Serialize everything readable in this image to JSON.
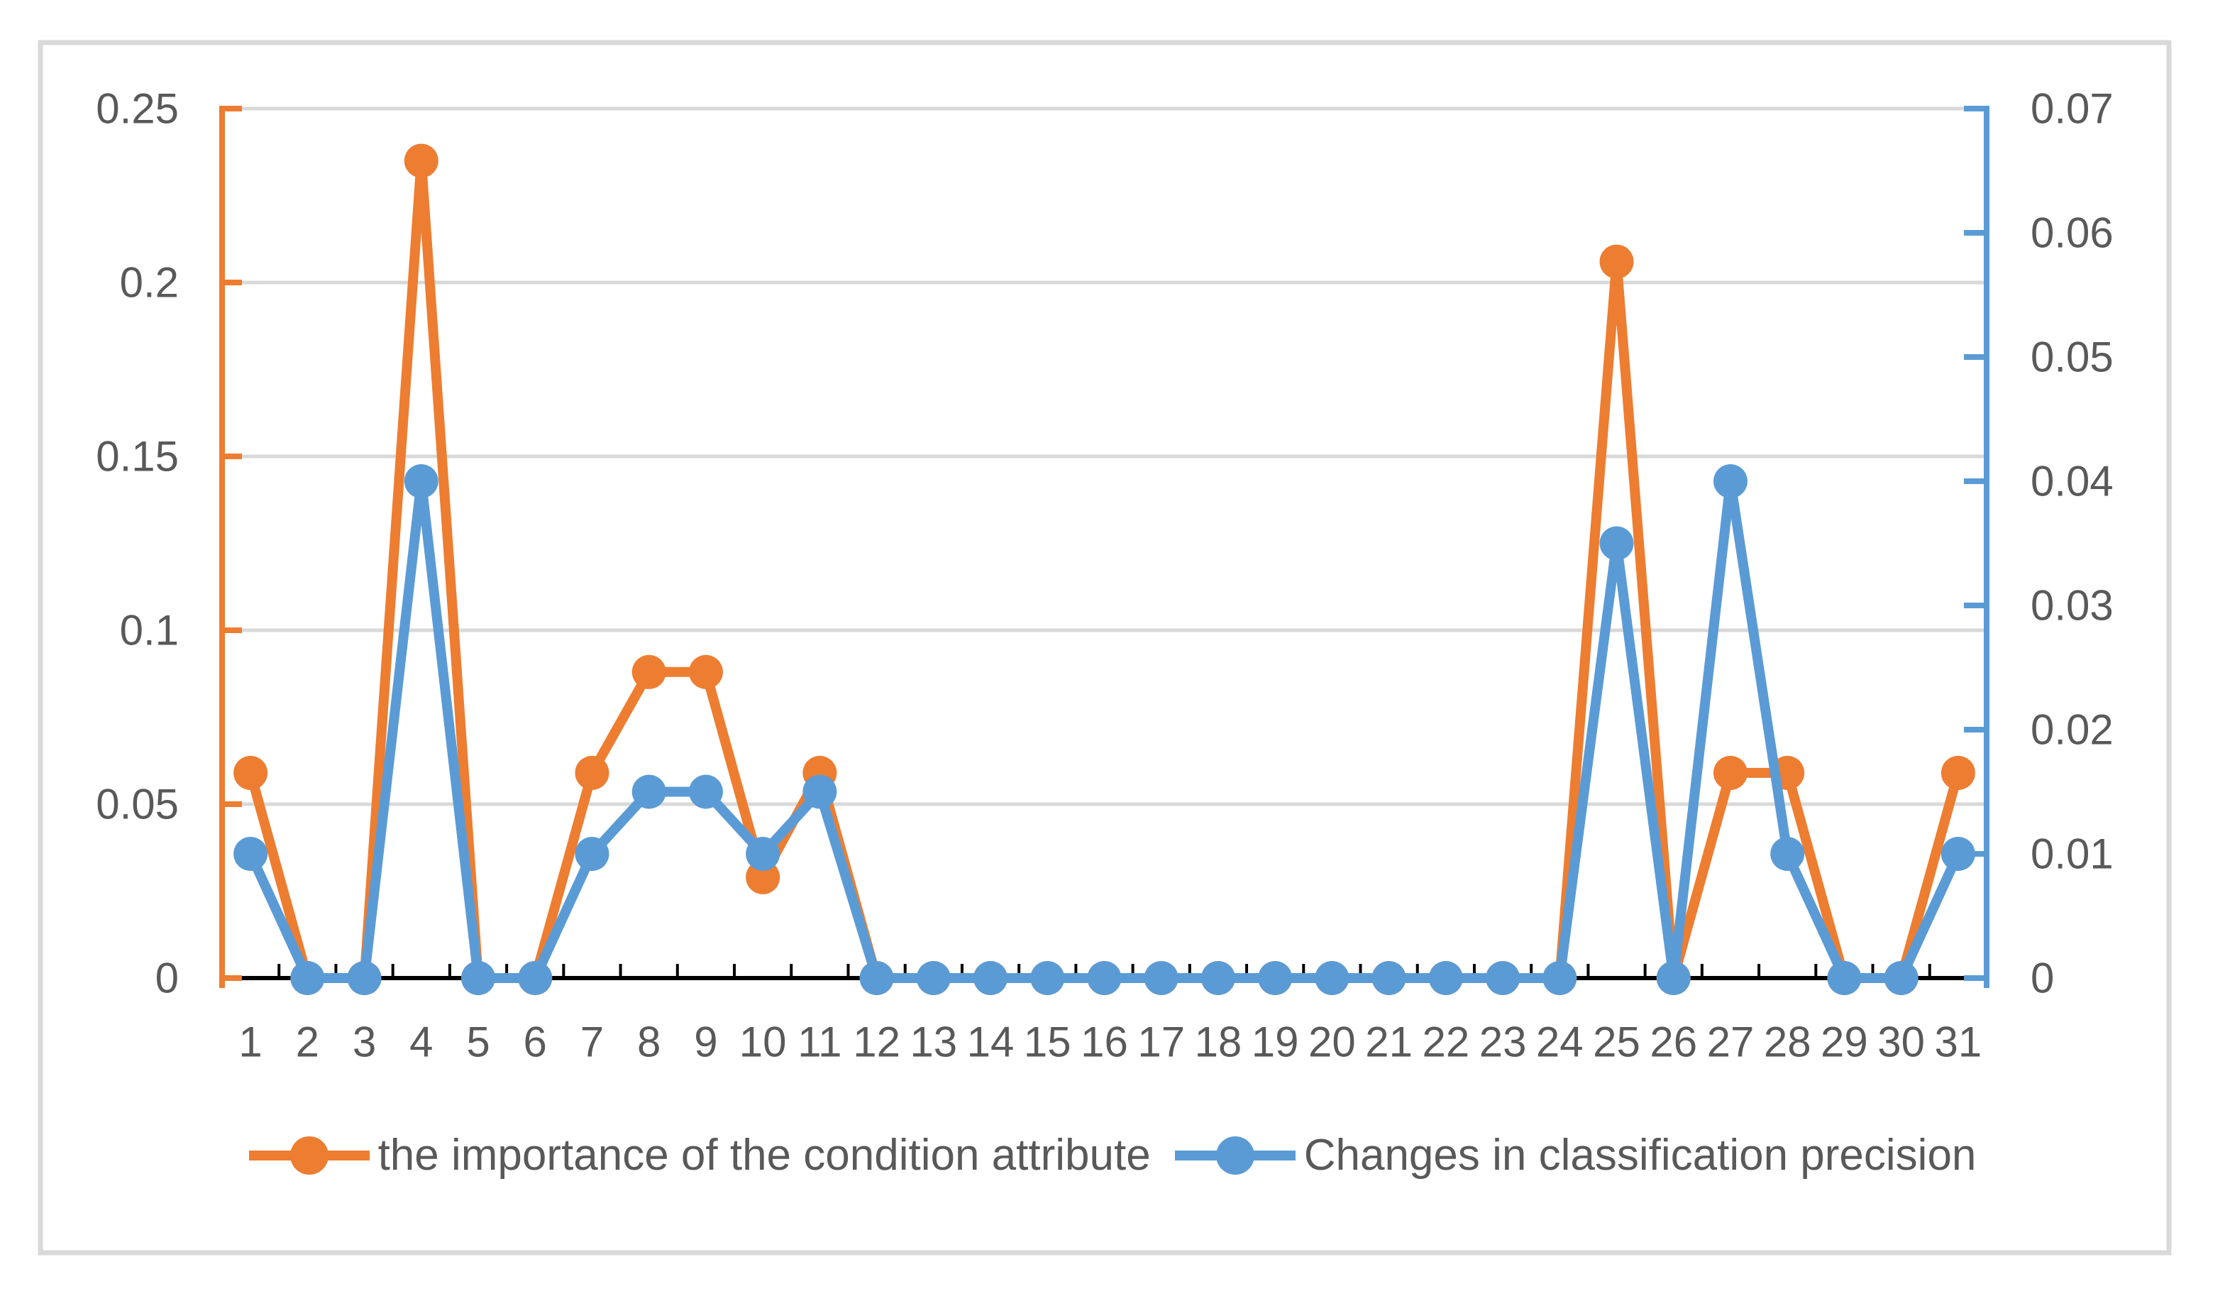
{
  "chart_data": {
    "type": "line",
    "title": "",
    "xlabel": "",
    "ylabel_left": "",
    "ylabel_right": "",
    "grid": true,
    "legend_position": "bottom",
    "categories": [
      "1",
      "2",
      "3",
      "4",
      "5",
      "6",
      "7",
      "8",
      "9",
      "10",
      "11",
      "12",
      "13",
      "14",
      "15",
      "16",
      "17",
      "18",
      "19",
      "20",
      "21",
      "22",
      "23",
      "24",
      "25",
      "26",
      "27",
      "28",
      "29",
      "30",
      "31"
    ],
    "series": [
      {
        "name": "the importance of the condition attribute",
        "axis": "left",
        "color": "#ED7D31",
        "marker": "circle",
        "values": [
          0.059,
          0,
          0,
          0.235,
          0,
          0,
          0.059,
          0.088,
          0.088,
          0.029,
          0.059,
          0,
          0,
          0,
          0,
          0,
          0,
          0,
          0,
          0,
          0,
          0,
          0,
          0,
          0.206,
          0,
          0.059,
          0.059,
          0,
          0,
          0.059
        ]
      },
      {
        "name": "Changes in classification precision",
        "axis": "right",
        "color": "#5B9BD5",
        "marker": "circle",
        "values": [
          0.01,
          0,
          0,
          0.04,
          0,
          0,
          0.01,
          0.015,
          0.015,
          0.01,
          0.015,
          0,
          0,
          0,
          0,
          0,
          0,
          0,
          0,
          0,
          0,
          0,
          0,
          0,
          0.035,
          0,
          0.04,
          0.01,
          0,
          0,
          0.01
        ]
      }
    ],
    "left_axis": {
      "min": 0,
      "max": 0.25,
      "tick_labels_top_down": [
        "0.25",
        "0.2",
        "0.15",
        "0.1",
        "0.05",
        "0"
      ],
      "color": "#ED7D31"
    },
    "right_axis": {
      "min": 0,
      "max": 0.07,
      "tick_labels_top_down": [
        "0.07",
        "0.06",
        "0.05",
        "0.04",
        "0.03",
        "0.02",
        "0.01",
        "0"
      ],
      "color": "#5B9BD5"
    },
    "x_axis": {
      "color": "#000000"
    }
  },
  "legend": {
    "items": [
      {
        "label": "the importance of the condition attribute",
        "color": "#ED7D31"
      },
      {
        "label": "Changes in classification precision",
        "color": "#5B9BD5"
      }
    ]
  },
  "style_colors": {
    "gridline": "#D9D9D9",
    "border": "#D9D9D9",
    "text": "#595959",
    "background": "#FFFFFF"
  }
}
